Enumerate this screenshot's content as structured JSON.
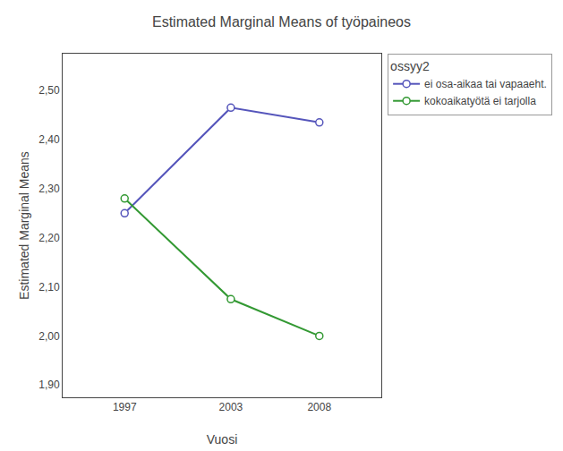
{
  "chart_data": {
    "type": "line",
    "title": "Estimated Marginal Means of työpaineos",
    "x_label": "Vuosi",
    "y_label": "Estimated Marginal Means",
    "legend_title": "ossyy2",
    "x": [
      1997,
      2003,
      2008
    ],
    "series": [
      {
        "name": "ei osa-aikaa tai vapaaeht.",
        "color": "#5555bb",
        "marker": "circle",
        "line_style": "solid",
        "values": [
          2.25,
          2.465,
          2.435
        ]
      },
      {
        "name": "kokoaikatyötä ei tarjolla",
        "color": "#339933",
        "marker": "circle",
        "line_style": "solid",
        "values": [
          2.28,
          2.075,
          2.0
        ]
      }
    ],
    "xlim": [
      1993.5,
      2011.5
    ],
    "xticks": [
      1997,
      2003,
      2008
    ],
    "ylim": [
      1.875,
      2.575
    ],
    "yticks": [
      {
        "value": 1.9,
        "label": "1,90"
      },
      {
        "value": 2.0,
        "label": "2,00"
      },
      {
        "value": 2.1,
        "label": "2,10"
      },
      {
        "value": 2.2,
        "label": "2,20"
      },
      {
        "value": 2.3,
        "label": "2,30"
      },
      {
        "value": 2.4,
        "label": "2,40"
      },
      {
        "value": 2.5,
        "label": "2,50"
      }
    ],
    "grid": false,
    "legend": "right"
  }
}
